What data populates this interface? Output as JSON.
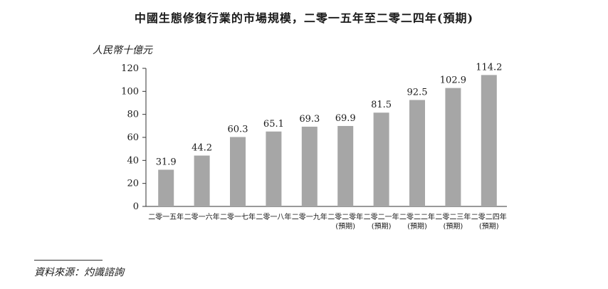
{
  "title": "中國生態修復行業的市場規模，二零一五年至二零二四年(預期)",
  "source": "資料來源：灼識諮詢",
  "chart_data": {
    "type": "bar",
    "title": "中國生態修復行業的市場規模，二零一五年至二零二四年(預期)",
    "ylabel": "人民幣十億元",
    "xlabel": "",
    "ylim": [
      0,
      120
    ],
    "yticks": [
      0,
      20,
      40,
      60,
      80,
      100,
      120
    ],
    "grid": false,
    "bar_color": "#a6a6a6",
    "categories": [
      [
        "二零一五年"
      ],
      [
        "二零一六年"
      ],
      [
        "二零一七年"
      ],
      [
        "二零一八年"
      ],
      [
        "二零一九年"
      ],
      [
        "二零二零年",
        "(預期)"
      ],
      [
        "二零二一年",
        "(預期)"
      ],
      [
        "二零二二年",
        "(預期)"
      ],
      [
        "二零二三年",
        "(預期)"
      ],
      [
        "二零二四年",
        "(預期)"
      ]
    ],
    "values": [
      31.9,
      44.2,
      60.3,
      65.1,
      69.3,
      69.9,
      81.5,
      92.5,
      102.9,
      114.2
    ],
    "value_labels": [
      "31.9",
      "44.2",
      "60.3",
      "65.1",
      "69.3",
      "69.9",
      "81.5",
      "92.5",
      "102.9",
      "114.2"
    ]
  }
}
